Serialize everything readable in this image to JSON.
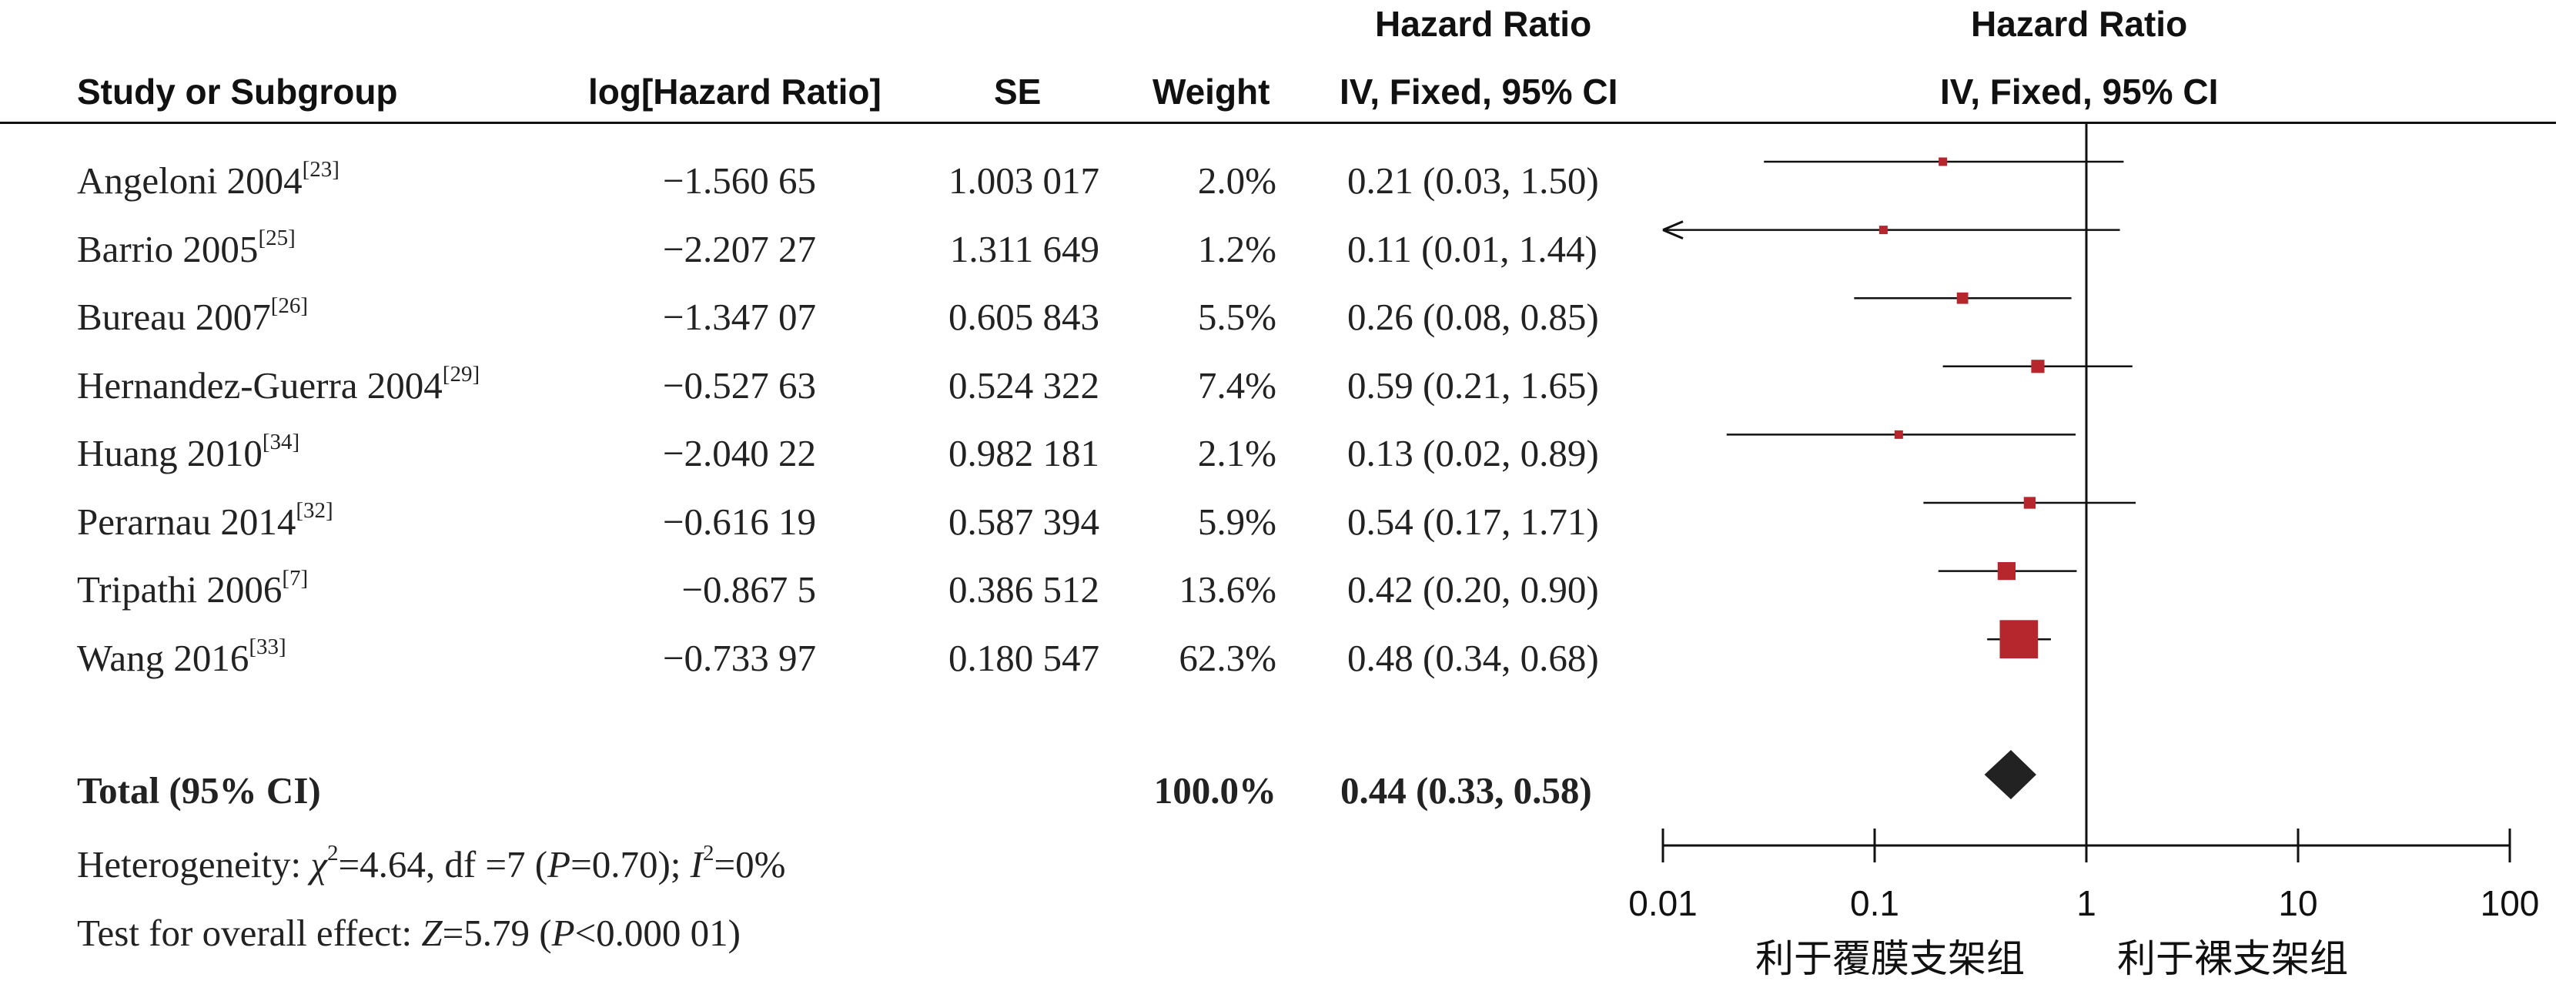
{
  "headers": {
    "study": "Study or Subgroup",
    "log_hr": "log[Hazard Ratio]",
    "se": "SE",
    "weight": "Weight",
    "hr_top": "Hazard Ratio",
    "hr_sub": "IV, Fixed, 95% CI",
    "plot_top": "Hazard Ratio",
    "plot_sub": "IV, Fixed, 95% CI"
  },
  "rows": [
    {
      "name": "Angeloni 2004",
      "ref": "[23]",
      "log_hr": "−1.560 65",
      "se": "1.003 017",
      "weight": "2.0%",
      "ci_text": "0.21 (0.03, 1.50)"
    },
    {
      "name": "Barrio 2005",
      "ref": "[25]",
      "log_hr": "−2.207 27",
      "se": "1.311 649",
      "weight": "1.2%",
      "ci_text": "0.11 (0.01, 1.44)"
    },
    {
      "name": "Bureau 2007",
      "ref": "[26]",
      "log_hr": "−1.347 07",
      "se": "0.605 843",
      "weight": "5.5%",
      "ci_text": "0.26 (0.08, 0.85)"
    },
    {
      "name": "Hernandez-Guerra 2004",
      "ref": "[29]",
      "log_hr": "−0.527 63",
      "se": "0.524 322",
      "weight": "7.4%",
      "ci_text": "0.59 (0.21, 1.65)"
    },
    {
      "name": "Huang 2010",
      "ref": "[34]",
      "log_hr": "−2.040 22",
      "se": "0.982 181",
      "weight": "2.1%",
      "ci_text": "0.13 (0.02, 0.89)"
    },
    {
      "name": "Perarnau 2014",
      "ref": "[32]",
      "log_hr": "−0.616 19",
      "se": "0.587 394",
      "weight": "5.9%",
      "ci_text": "0.54 (0.17, 1.71)"
    },
    {
      "name": "Tripathi 2006",
      "ref": "[7]",
      "log_hr": "−0.867 5",
      "se": "0.386 512",
      "weight": "13.6%",
      "ci_text": "0.42 (0.20, 0.90)"
    },
    {
      "name": "Wang 2016",
      "ref": "[33]",
      "log_hr": "−0.733 97",
      "se": "0.180 547",
      "weight": "62.3%",
      "ci_text": "0.48 (0.34, 0.68)"
    }
  ],
  "total": {
    "label": "Total (95% CI)",
    "weight": "100.0%",
    "ci_text": "0.44 (0.33, 0.58)"
  },
  "footer": {
    "heterogeneity": {
      "prefix": "Heterogeneity: ",
      "chi": "χ",
      "chi_val": "=4.64, df =7 (",
      "p": "P",
      "p_val": "=0.70); ",
      "i": "I",
      "i_val": "=0%"
    },
    "overall": {
      "prefix": "Test for overall effect: ",
      "z": "Z",
      "z_val": "=5.79 (",
      "p": "P",
      "p_val": "<0.000 01)"
    }
  },
  "axis_labels": {
    "left": "利于覆膜支架组",
    "right": "利于裸支架组"
  },
  "chart_data": {
    "type": "forest",
    "x_scale": "log",
    "xlim": [
      0.01,
      100
    ],
    "ticks": [
      0.01,
      0.1,
      1,
      10,
      100
    ],
    "tick_labels": [
      "0.01",
      "0.1",
      "1",
      "10",
      "100"
    ],
    "reference_line": 1,
    "marker_color": "#b5262d",
    "diamond_color": "#222222",
    "studies": [
      {
        "name": "Angeloni 2004",
        "hr": 0.21,
        "lower": 0.03,
        "upper": 1.5,
        "weight": 2.0
      },
      {
        "name": "Barrio 2005",
        "hr": 0.11,
        "lower": 0.01,
        "upper": 1.44,
        "weight": 1.2
      },
      {
        "name": "Bureau 2007",
        "hr": 0.26,
        "lower": 0.08,
        "upper": 0.85,
        "weight": 5.5
      },
      {
        "name": "Hernandez-Guerra 2004",
        "hr": 0.59,
        "lower": 0.21,
        "upper": 1.65,
        "weight": 7.4
      },
      {
        "name": "Huang 2010",
        "hr": 0.13,
        "lower": 0.02,
        "upper": 0.89,
        "weight": 2.1
      },
      {
        "name": "Perarnau 2014",
        "hr": 0.54,
        "lower": 0.17,
        "upper": 1.71,
        "weight": 5.9
      },
      {
        "name": "Tripathi 2006",
        "hr": 0.42,
        "lower": 0.2,
        "upper": 0.9,
        "weight": 13.6
      },
      {
        "name": "Wang 2016",
        "hr": 0.48,
        "lower": 0.34,
        "upper": 0.68,
        "weight": 62.3
      }
    ],
    "total": {
      "hr": 0.44,
      "lower": 0.33,
      "upper": 0.58
    }
  }
}
